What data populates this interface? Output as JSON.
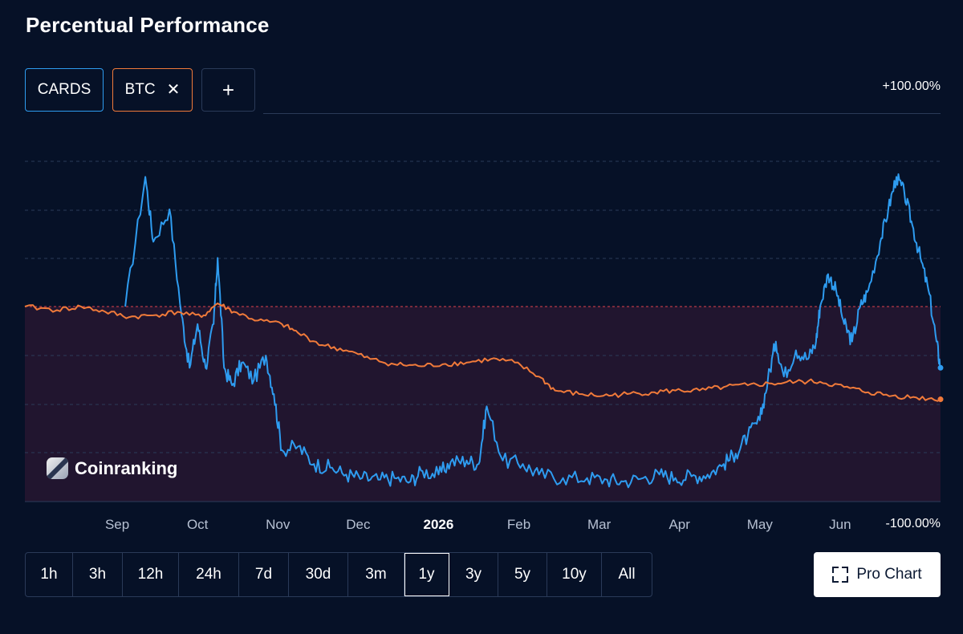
{
  "page": {
    "title": "Percentual Performance"
  },
  "chips": [
    {
      "label": "CARDS",
      "color": "#2e9cf0"
    },
    {
      "label": "BTC",
      "color": "#f07a3a"
    }
  ],
  "add_symbol": "+",
  "close_symbol": "✕",
  "watermark": "Coinranking",
  "timeframes": [
    "1h",
    "3h",
    "12h",
    "24h",
    "7d",
    "30d",
    "3m",
    "1y",
    "3y",
    "5y",
    "10y",
    "All"
  ],
  "active_timeframe": "1y",
  "pro_chart_label": "Pro Chart",
  "colors": {
    "background": "#061127",
    "cards": "#2e9cf0",
    "btc": "#f07a3a",
    "zero_line": "#e0434e",
    "fill": "#21152f"
  },
  "chart_data": {
    "type": "line",
    "ytop_label": "+100.00%",
    "ybottom_label": "-100.00%",
    "ylim": [
      -100,
      100
    ],
    "x_ticks": [
      {
        "label": "Sep",
        "x": 0.75,
        "bold": false
      },
      {
        "label": "Oct",
        "x": 1.75,
        "bold": false
      },
      {
        "label": "Nov",
        "x": 2.75,
        "bold": false
      },
      {
        "label": "Dec",
        "x": 3.75,
        "bold": false
      },
      {
        "label": "2026",
        "x": 4.75,
        "bold": true
      },
      {
        "label": "Feb",
        "x": 5.75,
        "bold": false
      },
      {
        "label": "Mar",
        "x": 6.75,
        "bold": false
      },
      {
        "label": "Apr",
        "x": 7.75,
        "bold": false
      },
      {
        "label": "May",
        "x": 8.75,
        "bold": false
      },
      {
        "label": "Jun",
        "x": 9.75,
        "bold": false
      }
    ],
    "xlim": [
      -0.4,
      11.0
    ],
    "series": [
      {
        "name": "CARDS",
        "color": "#2e9cf0",
        "points": [
          [
            0.85,
            0
          ],
          [
            1.1,
            80
          ],
          [
            1.2,
            40
          ],
          [
            1.4,
            60
          ],
          [
            1.55,
            -5
          ],
          [
            1.65,
            -35
          ],
          [
            1.75,
            -10
          ],
          [
            1.85,
            -35
          ],
          [
            1.95,
            -10
          ],
          [
            2.0,
            30
          ],
          [
            2.08,
            -35
          ],
          [
            2.18,
            -45
          ],
          [
            2.3,
            -32
          ],
          [
            2.45,
            -42
          ],
          [
            2.6,
            -28
          ],
          [
            2.7,
            -50
          ],
          [
            2.8,
            -82
          ],
          [
            3.0,
            -80
          ],
          [
            3.2,
            -90
          ],
          [
            3.4,
            -92
          ],
          [
            3.6,
            -96
          ],
          [
            3.8,
            -98
          ],
          [
            4.0,
            -99
          ],
          [
            4.2,
            -98
          ],
          [
            4.4,
            -100
          ],
          [
            4.55,
            -94
          ],
          [
            4.75,
            -96
          ],
          [
            4.9,
            -89
          ],
          [
            5.1,
            -88
          ],
          [
            5.25,
            -90
          ],
          [
            5.35,
            -57
          ],
          [
            5.55,
            -88
          ],
          [
            5.8,
            -90
          ],
          [
            6.0,
            -96
          ],
          [
            6.3,
            -98
          ],
          [
            6.6,
            -98
          ],
          [
            6.85,
            -99
          ],
          [
            7.05,
            -100
          ],
          [
            7.3,
            -98
          ],
          [
            7.5,
            -96
          ],
          [
            7.7,
            -98
          ],
          [
            7.9,
            -97
          ],
          [
            8.1,
            -96
          ],
          [
            8.3,
            -90
          ],
          [
            8.45,
            -84
          ],
          [
            8.6,
            -74
          ],
          [
            8.75,
            -65
          ],
          [
            8.85,
            -42
          ],
          [
            8.95,
            -20
          ],
          [
            9.05,
            -40
          ],
          [
            9.2,
            -25
          ],
          [
            9.35,
            -30
          ],
          [
            9.45,
            -20
          ],
          [
            9.5,
            0
          ],
          [
            9.6,
            20
          ],
          [
            9.7,
            10
          ],
          [
            9.8,
            -10
          ],
          [
            9.9,
            -20
          ],
          [
            10.0,
            0
          ],
          [
            10.1,
            10
          ],
          [
            10.25,
            40
          ],
          [
            10.35,
            60
          ],
          [
            10.45,
            80
          ],
          [
            10.55,
            70
          ],
          [
            10.65,
            50
          ],
          [
            10.75,
            30
          ],
          [
            10.85,
            10
          ],
          [
            10.95,
            -20
          ],
          [
            11.0,
            -35
          ]
        ]
      },
      {
        "name": "BTC",
        "color": "#f07a3a",
        "points": [
          [
            -0.4,
            0
          ],
          [
            0.0,
            -2
          ],
          [
            0.3,
            0
          ],
          [
            0.6,
            -3
          ],
          [
            0.9,
            -6
          ],
          [
            1.2,
            -5
          ],
          [
            1.5,
            -3
          ],
          [
            1.8,
            -6
          ],
          [
            2.0,
            2
          ],
          [
            2.2,
            -3
          ],
          [
            2.5,
            -8
          ],
          [
            2.8,
            -10
          ],
          [
            3.0,
            -15
          ],
          [
            3.3,
            -22
          ],
          [
            3.6,
            -25
          ],
          [
            3.9,
            -30
          ],
          [
            4.2,
            -33
          ],
          [
            4.5,
            -34
          ],
          [
            4.8,
            -33
          ],
          [
            5.1,
            -32
          ],
          [
            5.4,
            -30
          ],
          [
            5.7,
            -32
          ],
          [
            6.0,
            -40
          ],
          [
            6.2,
            -48
          ],
          [
            6.5,
            -50
          ],
          [
            6.8,
            -51
          ],
          [
            7.1,
            -50
          ],
          [
            7.4,
            -49
          ],
          [
            7.7,
            -48
          ],
          [
            8.0,
            -48
          ],
          [
            8.3,
            -46
          ],
          [
            8.6,
            -45
          ],
          [
            8.9,
            -44
          ],
          [
            9.2,
            -43
          ],
          [
            9.5,
            -43
          ],
          [
            9.8,
            -46
          ],
          [
            10.1,
            -49
          ],
          [
            10.4,
            -51
          ],
          [
            10.7,
            -52
          ],
          [
            11.0,
            -53
          ]
        ]
      }
    ]
  }
}
